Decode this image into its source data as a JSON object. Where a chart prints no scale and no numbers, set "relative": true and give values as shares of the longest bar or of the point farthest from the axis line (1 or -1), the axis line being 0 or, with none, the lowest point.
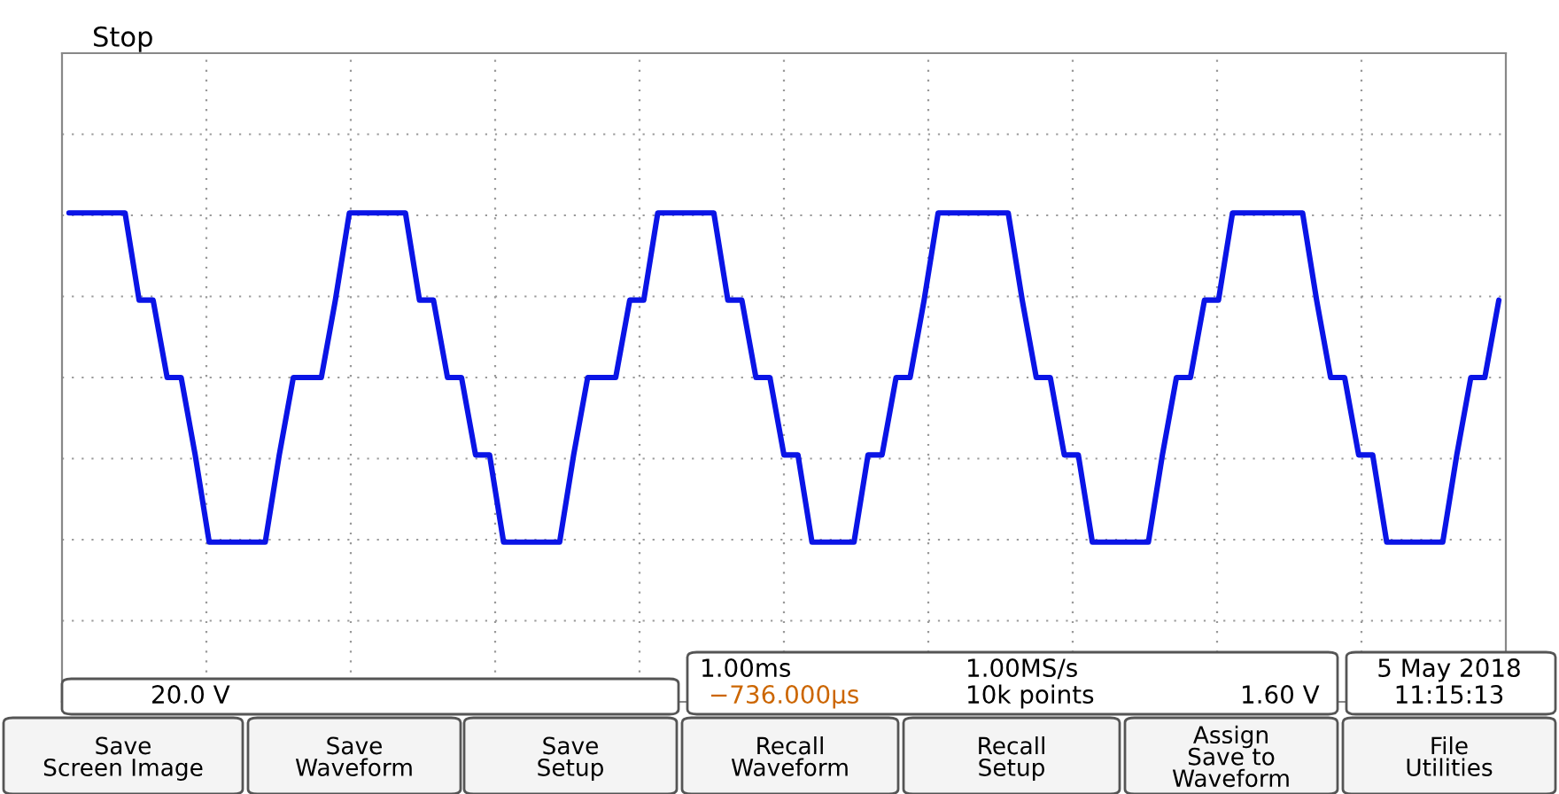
{
  "chart_data": {
    "type": "line",
    "relative": true,
    "grid": true,
    "legend": false,
    "categories": [
      null,
      null,
      null,
      null,
      null,
      null,
      null,
      null,
      null,
      null,
      null,
      null,
      null,
      null,
      null,
      null,
      null,
      null,
      null,
      null,
      null,
      null,
      null,
      null,
      null,
      null,
      null,
      null,
      null,
      null,
      null,
      null,
      null,
      null,
      null,
      null,
      null,
      null,
      null,
      null,
      null,
      null,
      null,
      null,
      null,
      null,
      null,
      null,
      null,
      null,
      null,
      null,
      null,
      null,
      null,
      null,
      null,
      null,
      null,
      null,
      null,
      null,
      null,
      null,
      null,
      null,
      null,
      null,
      null,
      null,
      null,
      null,
      null,
      null,
      null,
      null,
      null,
      null,
      null,
      null,
      null,
      null,
      null,
      null,
      null,
      null,
      null,
      null,
      null,
      null,
      null,
      null,
      null,
      null,
      null,
      null,
      null,
      null,
      null,
      null,
      null,
      null,
      null
    ],
    "series": [
      {
        "color": "#0a14e6",
        "values": [
          1,
          1,
          1,
          1,
          1,
          0.47,
          0.47,
          0,
          0,
          -0.47,
          -1,
          -1,
          -1,
          -1,
          -1,
          -0.47,
          0,
          0,
          0,
          0.47,
          1,
          1,
          1,
          1,
          1,
          0.47,
          0.47,
          0,
          0,
          -0.47,
          -0.47,
          -1,
          -1,
          -1,
          -1,
          -1,
          -0.47,
          0,
          0,
          0,
          0.47,
          0.47,
          1,
          1,
          1,
          1,
          1,
          0.47,
          0.47,
          0,
          0,
          -0.47,
          -0.47,
          -1,
          -1,
          -1,
          -1,
          -0.47,
          -0.47,
          0,
          0,
          0.47,
          1,
          1,
          1,
          1,
          1,
          1,
          0.47,
          0,
          0,
          -0.47,
          -0.47,
          -1,
          -1,
          -1,
          -1,
          -1,
          -0.47,
          0,
          0,
          0.47,
          0.47,
          1,
          1,
          1,
          1,
          1,
          1,
          0.47,
          0,
          0,
          -0.47,
          -0.47,
          -1,
          -1,
          -1,
          -1,
          -1,
          -0.47,
          0,
          0,
          0.47
        ]
      }
    ],
    "annotations": [
      "Stop",
      "20.0 V",
      "1.00ms",
      "1.00MS/s",
      "−736.000µs",
      "10k points",
      "1.60 V",
      "5 May 2018",
      "11:15:13",
      "Save\nScreen Image",
      "Save\nWaveform",
      "Save\nSetup",
      "Recall\nWaveform",
      "Recall\nSetup",
      "Assign\nSave to\nWaveform",
      "File\nUtilities"
    ]
  }
}
